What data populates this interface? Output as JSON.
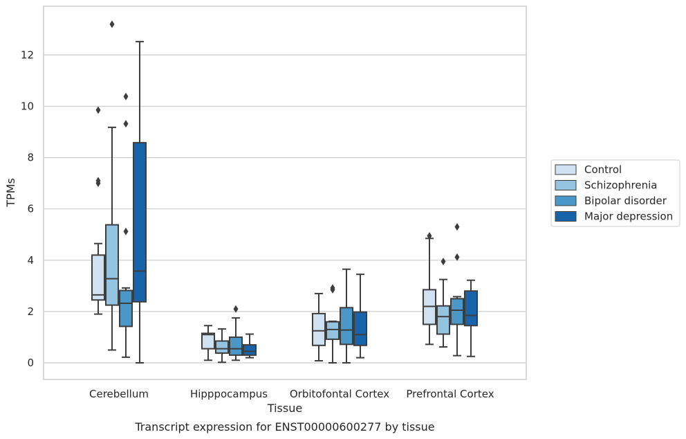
{
  "chart_data": {
    "type": "box",
    "title": "",
    "caption": "Transcript expression for ENST00000600277 by tissue",
    "xlabel": "Tissue",
    "ylabel": "TPMs",
    "ylim": [
      -0.65,
      13.8
    ],
    "yticks": [
      0,
      2,
      4,
      6,
      8,
      10,
      12
    ],
    "grid": "horizontal",
    "legend_position": "right",
    "categories": [
      "Cerebellum",
      "Hipppocampus",
      "Orbitofontal Cortex",
      "Prefrontal Cortex"
    ],
    "series": [
      {
        "name": "Control",
        "color": "#d0e1f2",
        "boxes": [
          {
            "whisker_low": 1.9,
            "q1": 2.45,
            "median": 2.65,
            "q3": 4.2,
            "whisker_high": 4.65,
            "outliers": [
              7.0,
              7.1,
              9.85
            ]
          },
          {
            "whisker_low": 0.1,
            "q1": 0.55,
            "median": 1.1,
            "q3": 1.15,
            "whisker_high": 1.45,
            "outliers": []
          },
          {
            "whisker_low": 0.08,
            "q1": 0.68,
            "median": 1.25,
            "q3": 1.92,
            "whisker_high": 2.7,
            "outliers": []
          },
          {
            "whisker_low": 0.72,
            "q1": 1.5,
            "median": 2.2,
            "q3": 2.85,
            "whisker_high": 4.85,
            "outliers": [
              4.95
            ]
          }
        ]
      },
      {
        "name": "Schizophrenia",
        "color": "#94c4df",
        "boxes": [
          {
            "whisker_low": 0.5,
            "q1": 2.25,
            "median": 3.28,
            "q3": 5.38,
            "whisker_high": 9.18,
            "outliers": [
              13.2
            ]
          },
          {
            "whisker_low": 0.02,
            "q1": 0.38,
            "median": 0.55,
            "q3": 0.85,
            "whisker_high": 1.32,
            "outliers": []
          },
          {
            "whisker_low": 0.0,
            "q1": 0.92,
            "median": 1.3,
            "q3": 1.6,
            "whisker_high": 1.62,
            "outliers": [
              2.85,
              2.92
            ]
          },
          {
            "whisker_low": 0.62,
            "q1": 1.12,
            "median": 1.8,
            "q3": 2.22,
            "whisker_high": 3.25,
            "outliers": [
              3.95
            ]
          }
        ]
      },
      {
        "name": "Bipolar disorder",
        "color": "#4a98c9",
        "boxes": [
          {
            "whisker_low": 0.22,
            "q1": 1.42,
            "median": 2.32,
            "q3": 2.82,
            "whisker_high": 2.92,
            "outliers": [
              5.12,
              9.32,
              10.38
            ]
          },
          {
            "whisker_low": 0.1,
            "q1": 0.3,
            "median": 0.55,
            "q3": 1.0,
            "whisker_high": 1.75,
            "outliers": [
              2.1
            ]
          },
          {
            "whisker_low": 0.0,
            "q1": 0.72,
            "median": 1.28,
            "q3": 2.15,
            "whisker_high": 3.65,
            "outliers": []
          },
          {
            "whisker_low": 0.28,
            "q1": 1.5,
            "median": 2.05,
            "q3": 2.5,
            "whisker_high": 2.58,
            "outliers": [
              4.12,
              5.3
            ]
          }
        ]
      },
      {
        "name": "Major depression",
        "color": "#1764ab",
        "boxes": [
          {
            "whisker_low": 0.0,
            "q1": 2.38,
            "median": 3.58,
            "q3": 8.58,
            "whisker_high": 12.52,
            "outliers": []
          },
          {
            "whisker_low": 0.2,
            "q1": 0.3,
            "median": 0.45,
            "q3": 0.7,
            "whisker_high": 1.12,
            "outliers": []
          },
          {
            "whisker_low": 0.2,
            "q1": 0.68,
            "median": 1.1,
            "q3": 1.98,
            "whisker_high": 3.45,
            "outliers": []
          },
          {
            "whisker_low": 0.25,
            "q1": 1.45,
            "median": 1.85,
            "q3": 2.8,
            "whisker_high": 3.22,
            "outliers": []
          }
        ]
      }
    ]
  }
}
